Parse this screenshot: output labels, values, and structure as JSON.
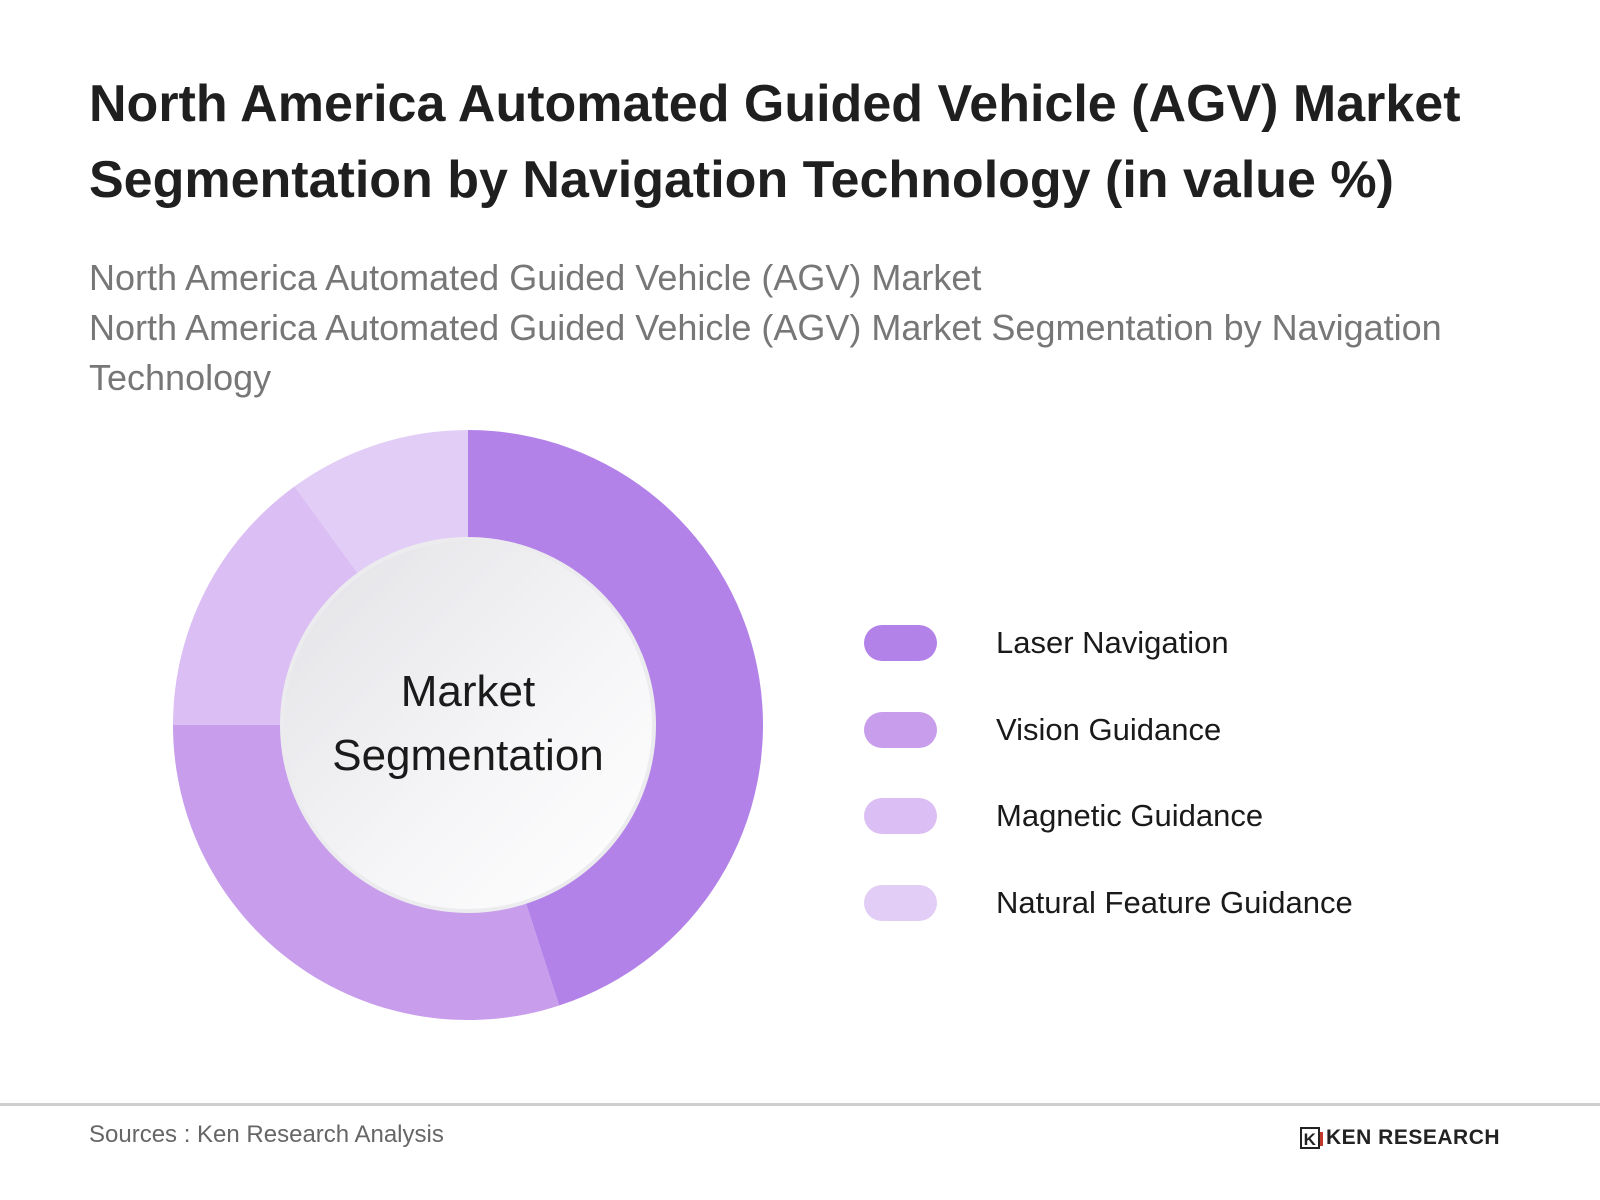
{
  "title": "North America Automated Guided Vehicle (AGV) Market Segmentation by Navigation Technology (in value %)",
  "subtitle_line1": "North America Automated Guided Vehicle (AGV) Market",
  "subtitle_line2": "North America Automated Guided Vehicle (AGV) Market Segmentation by Navigation Technology",
  "footer": {
    "source": "Sources : Ken Research Analysis",
    "logo_mark": "K",
    "logo_text": "KEN RESEARCH"
  },
  "chart_data": {
    "type": "pie",
    "variant": "donut",
    "title": "North America Automated Guided Vehicle (AGV) Market Segmentation by Navigation Technology (in value %)",
    "center_label": "Market Segmentation",
    "legend_position": "right",
    "categories": [
      "Laser Navigation",
      "Vision Guidance",
      "Magnetic Guidance",
      "Natural Feature Guidance"
    ],
    "values": [
      45,
      30,
      15,
      10
    ],
    "colors": [
      "#b382e8",
      "#c79dec",
      "#dbbff4",
      "#e2cdf6"
    ]
  }
}
